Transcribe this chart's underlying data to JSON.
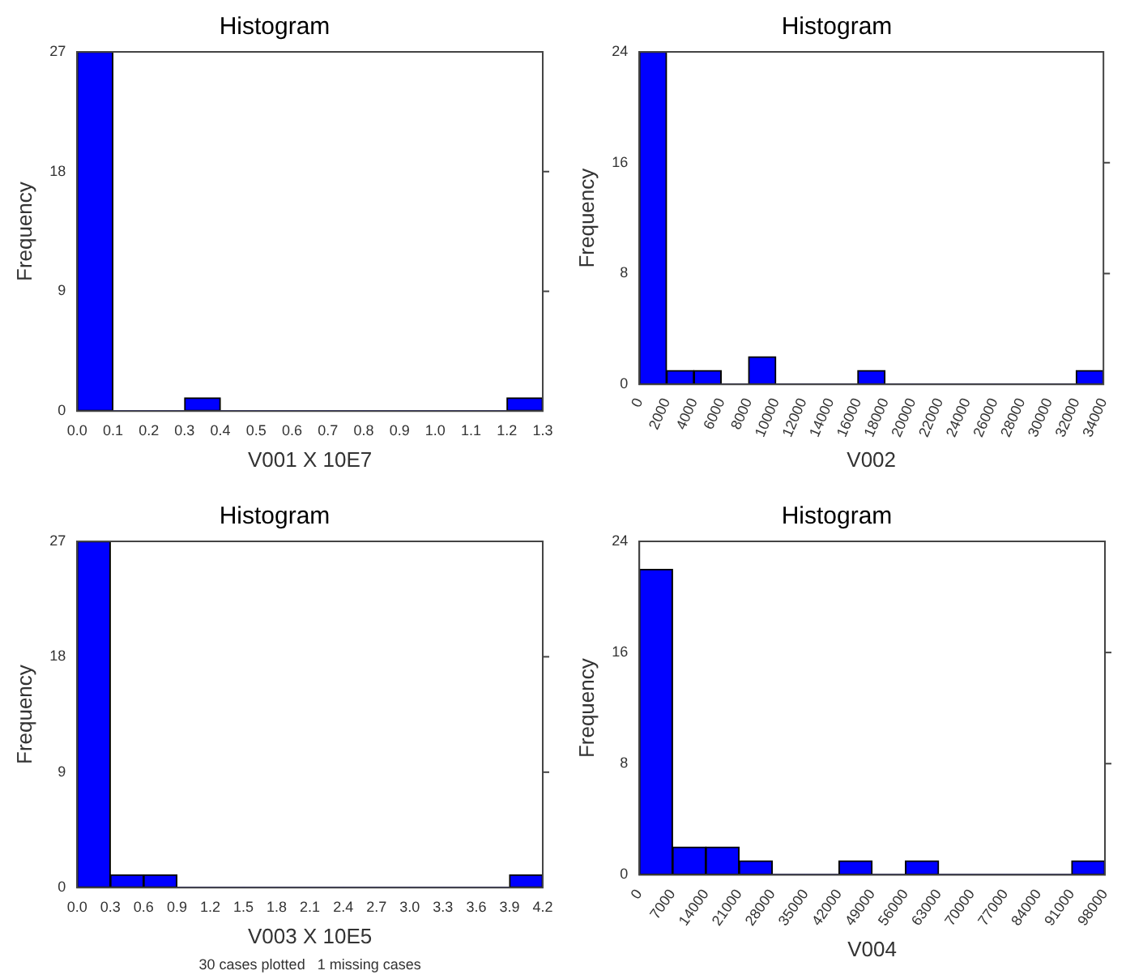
{
  "chart_data": [
    {
      "type": "histogram",
      "title": "Histogram",
      "xlabel": "V001 X 10E7",
      "ylabel": "Frequency",
      "color": "#0000ff",
      "bins": [
        0,
        0.1,
        0.2,
        0.3,
        0.4,
        0.5,
        0.6,
        0.7,
        0.8,
        0.9,
        1.0,
        1.1,
        1.2,
        1.3
      ],
      "values": [
        27,
        0,
        0,
        1,
        0,
        0,
        0,
        0,
        0,
        0,
        0,
        0,
        1
      ],
      "xlim": [
        0,
        1.3
      ],
      "xticks": [
        {
          "value": 0,
          "label": "0.0"
        },
        0.1,
        0.2,
        0.3,
        0.4,
        0.5,
        0.6,
        0.7,
        0.8,
        0.9,
        {
          "value": 1,
          "label": "1.0"
        },
        1.1,
        1.2,
        1.3
      ],
      "ylim": [
        0,
        27
      ],
      "yticks": [
        0,
        9,
        18,
        27
      ]
    },
    {
      "type": "histogram",
      "title": "Histogram",
      "xlabel": "V002",
      "ylabel": "Frequency",
      "color": "#0000ff",
      "bins": [
        0,
        2000,
        4000,
        6000,
        8000,
        10000,
        12000,
        14000,
        16000,
        18000,
        20000,
        22000,
        24000,
        26000,
        28000,
        30000,
        32000,
        34000
      ],
      "values": [
        24,
        1,
        1,
        0,
        2,
        0,
        0,
        0,
        1,
        0,
        0,
        0,
        0,
        0,
        0,
        0,
        1
      ],
      "xlim": [
        0,
        34000
      ],
      "xticks": [
        0,
        2000,
        4000,
        6000,
        8000,
        10000,
        12000,
        14000,
        16000,
        18000,
        20000,
        22000,
        24000,
        26000,
        28000,
        30000,
        32000,
        34000
      ],
      "ylim": [
        0,
        24
      ],
      "yticks": [
        0,
        8,
        16,
        24
      ]
    },
    {
      "type": "histogram",
      "title": "Histogram",
      "xlabel": "V003 X 10E5",
      "ylabel": "Frequency",
      "color": "#0000ff",
      "bins": [
        0,
        0.3,
        0.6,
        0.9,
        1.2,
        1.5,
        1.8,
        2.1,
        2.4,
        2.7,
        3.0,
        3.3,
        3.6,
        3.9,
        4.2
      ],
      "values": [
        27,
        1,
        1,
        0,
        0,
        0,
        0,
        0,
        0,
        0,
        0,
        0,
        0,
        1
      ],
      "xlim": [
        0,
        4.2
      ],
      "xticks": [
        {
          "value": 0,
          "label": "0.0"
        },
        0.3,
        0.6,
        0.9,
        1.2,
        1.5,
        1.8,
        2.1,
        2.4,
        2.7,
        {
          "value": 3,
          "label": "3.0"
        },
        3.3,
        3.6,
        3.9,
        4.2
      ],
      "ylim": [
        0,
        27
      ],
      "yticks": [
        0,
        9,
        18,
        27
      ],
      "annotations": [
        "30 cases plotted   1 missing cases"
      ]
    },
    {
      "type": "histogram",
      "title": "Histogram",
      "xlabel": "V004",
      "ylabel": "Frequency",
      "color": "#0000ff",
      "bins": [
        0,
        7000,
        14000,
        21000,
        28000,
        35000,
        42000,
        49000,
        56000,
        63000,
        70000,
        77000,
        84000,
        91000,
        98000
      ],
      "values": [
        22,
        2,
        2,
        1,
        0,
        0,
        1,
        0,
        1,
        0,
        0,
        0,
        0,
        1
      ],
      "xlim": [
        0,
        98000
      ],
      "xticks": [
        0,
        7000,
        14000,
        21000,
        28000,
        35000,
        42000,
        49000,
        56000,
        63000,
        70000,
        77000,
        84000,
        91000,
        98000
      ],
      "ylim": [
        0,
        24
      ],
      "yticks": [
        0,
        8,
        16,
        24
      ]
    }
  ]
}
